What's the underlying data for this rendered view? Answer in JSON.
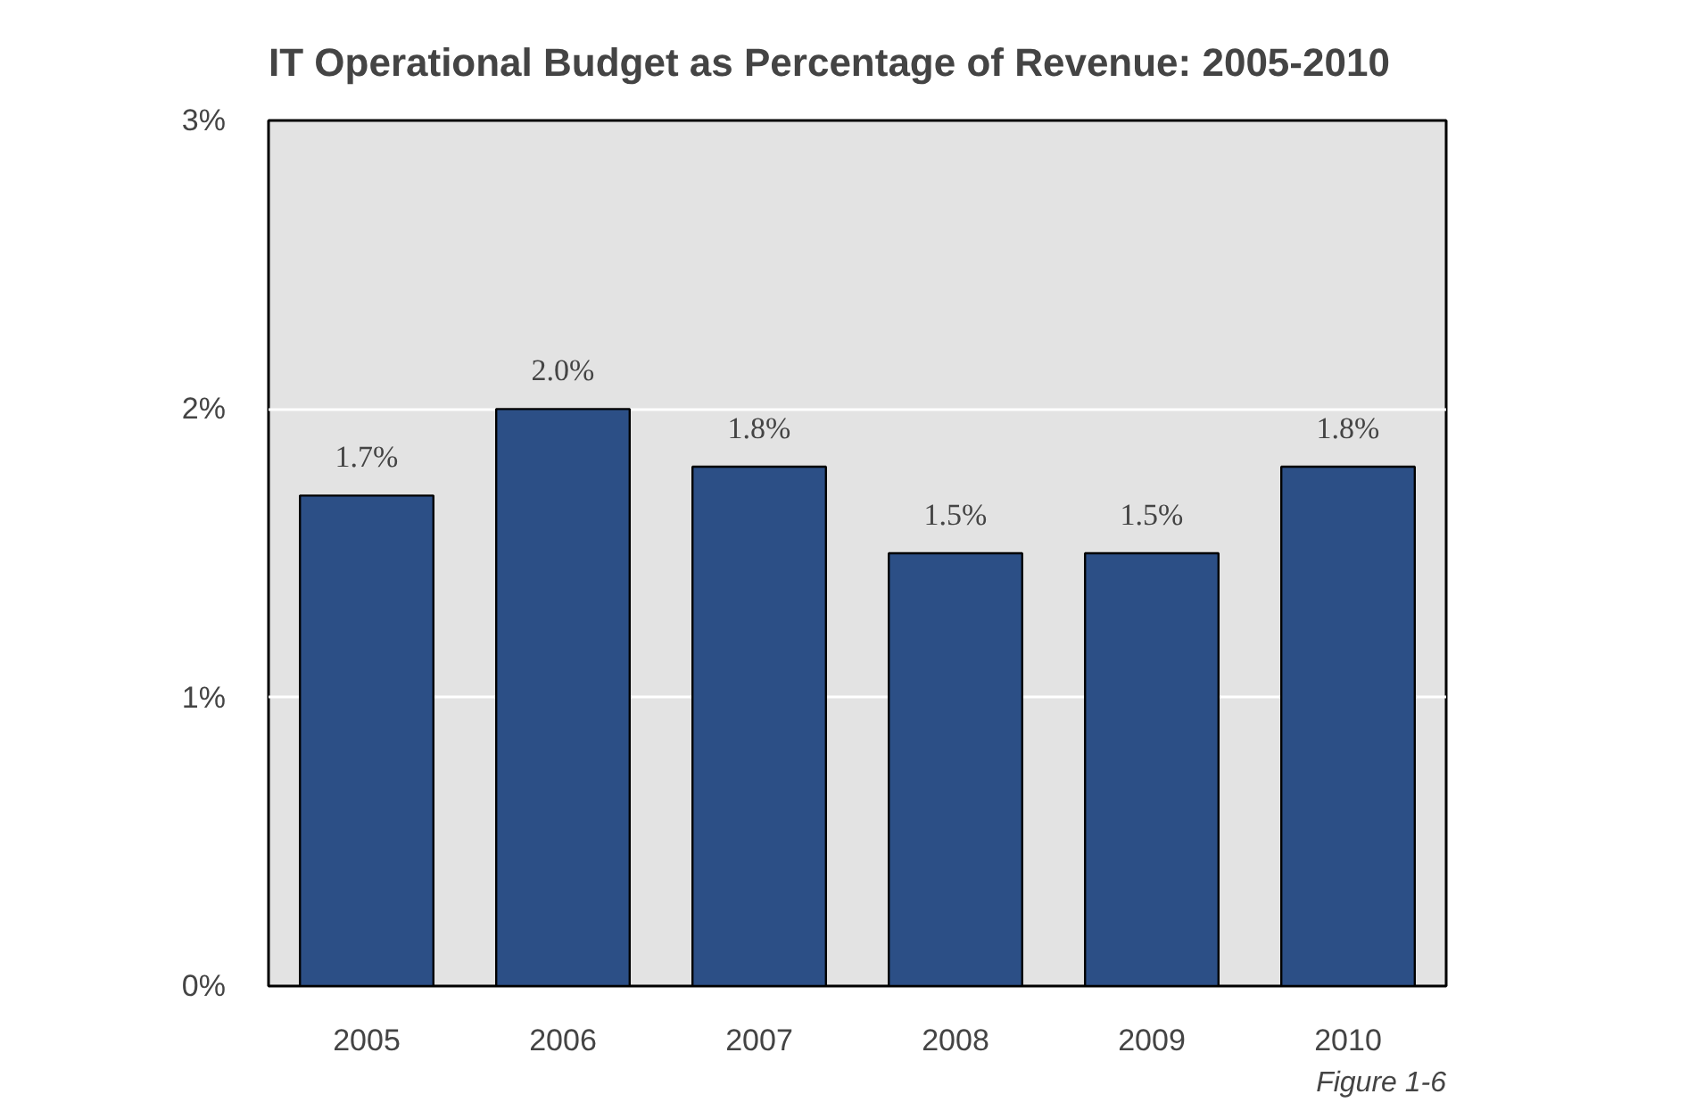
{
  "chart_data": {
    "type": "bar",
    "title": "IT Operational Budget as Percentage of Revenue: 2005-2010",
    "categories": [
      "2005",
      "2006",
      "2007",
      "2008",
      "2009",
      "2010"
    ],
    "values": [
      1.7,
      2.0,
      1.8,
      1.5,
      1.5,
      1.8
    ],
    "value_labels": [
      "1.7%",
      "2.0%",
      "1.8%",
      "1.5%",
      "1.5%",
      "1.8%"
    ],
    "color": "#2c4f86",
    "ylim": [
      0,
      3
    ],
    "yticks": [
      {
        "value": 0,
        "label": "0%"
      },
      {
        "value": 1,
        "label": "1%"
      },
      {
        "value": 2,
        "label": "2%"
      },
      {
        "value": 3,
        "label": "3%"
      }
    ],
    "grid": "y",
    "annotations": [
      "Figure 1-6"
    ]
  }
}
